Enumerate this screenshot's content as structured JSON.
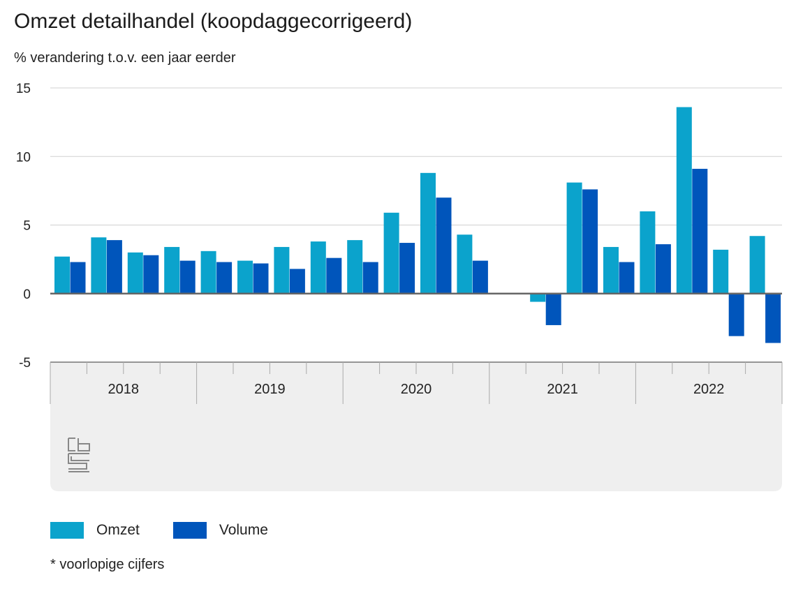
{
  "chart_data": {
    "type": "bar",
    "title": "Omzet detailhandel (koopdaggecorrigeerd)",
    "subtitle": "% verandering t.o.v. een jaar eerder",
    "xlabel": "",
    "ylabel": "% verandering t.o.v. een jaar eerder",
    "ylim": [
      -5,
      15
    ],
    "yticks": [
      15,
      10,
      5,
      0,
      -5
    ],
    "years": [
      "2018",
      "2019",
      "2020",
      "2021",
      "2022"
    ],
    "categories": [
      "2018 Q1",
      "2018 Q2",
      "2018 Q3",
      "2018 Q4",
      "2019 Q1",
      "2019 Q2",
      "2019 Q3",
      "2019 Q4",
      "2020 Q1",
      "2020 Q2",
      "2020 Q3",
      "2020 Q4",
      "2021 Q1",
      "2021 Q2",
      "2021 Q3",
      "2021 Q4",
      "2022 Q1",
      "2022 Q2",
      "2022 Q3",
      "2022 Q4"
    ],
    "series": [
      {
        "name": "Omzet",
        "color": "#0ba3cc",
        "values": [
          2.7,
          4.1,
          3.0,
          3.4,
          3.1,
          2.4,
          3.4,
          3.8,
          3.9,
          5.9,
          8.8,
          4.3,
          null,
          -0.6,
          8.1,
          3.4,
          6.0,
          13.6,
          3.2,
          4.2
        ]
      },
      {
        "name": "Volume",
        "color": "#0055bb",
        "values": [
          2.3,
          3.9,
          2.8,
          2.4,
          2.3,
          2.2,
          1.8,
          2.6,
          2.3,
          3.7,
          7.0,
          2.4,
          null,
          -2.3,
          7.6,
          2.3,
          3.6,
          9.1,
          -3.1,
          -3.6
        ]
      }
    ],
    "legend_position": "bottom-left",
    "grid": true
  },
  "legend": [
    {
      "label": "Omzet",
      "color": "#0ba3cc"
    },
    {
      "label": "Volume",
      "color": "#0055bb"
    }
  ],
  "footnote": "* voorlopige cijfers",
  "logo_text": "cbs"
}
